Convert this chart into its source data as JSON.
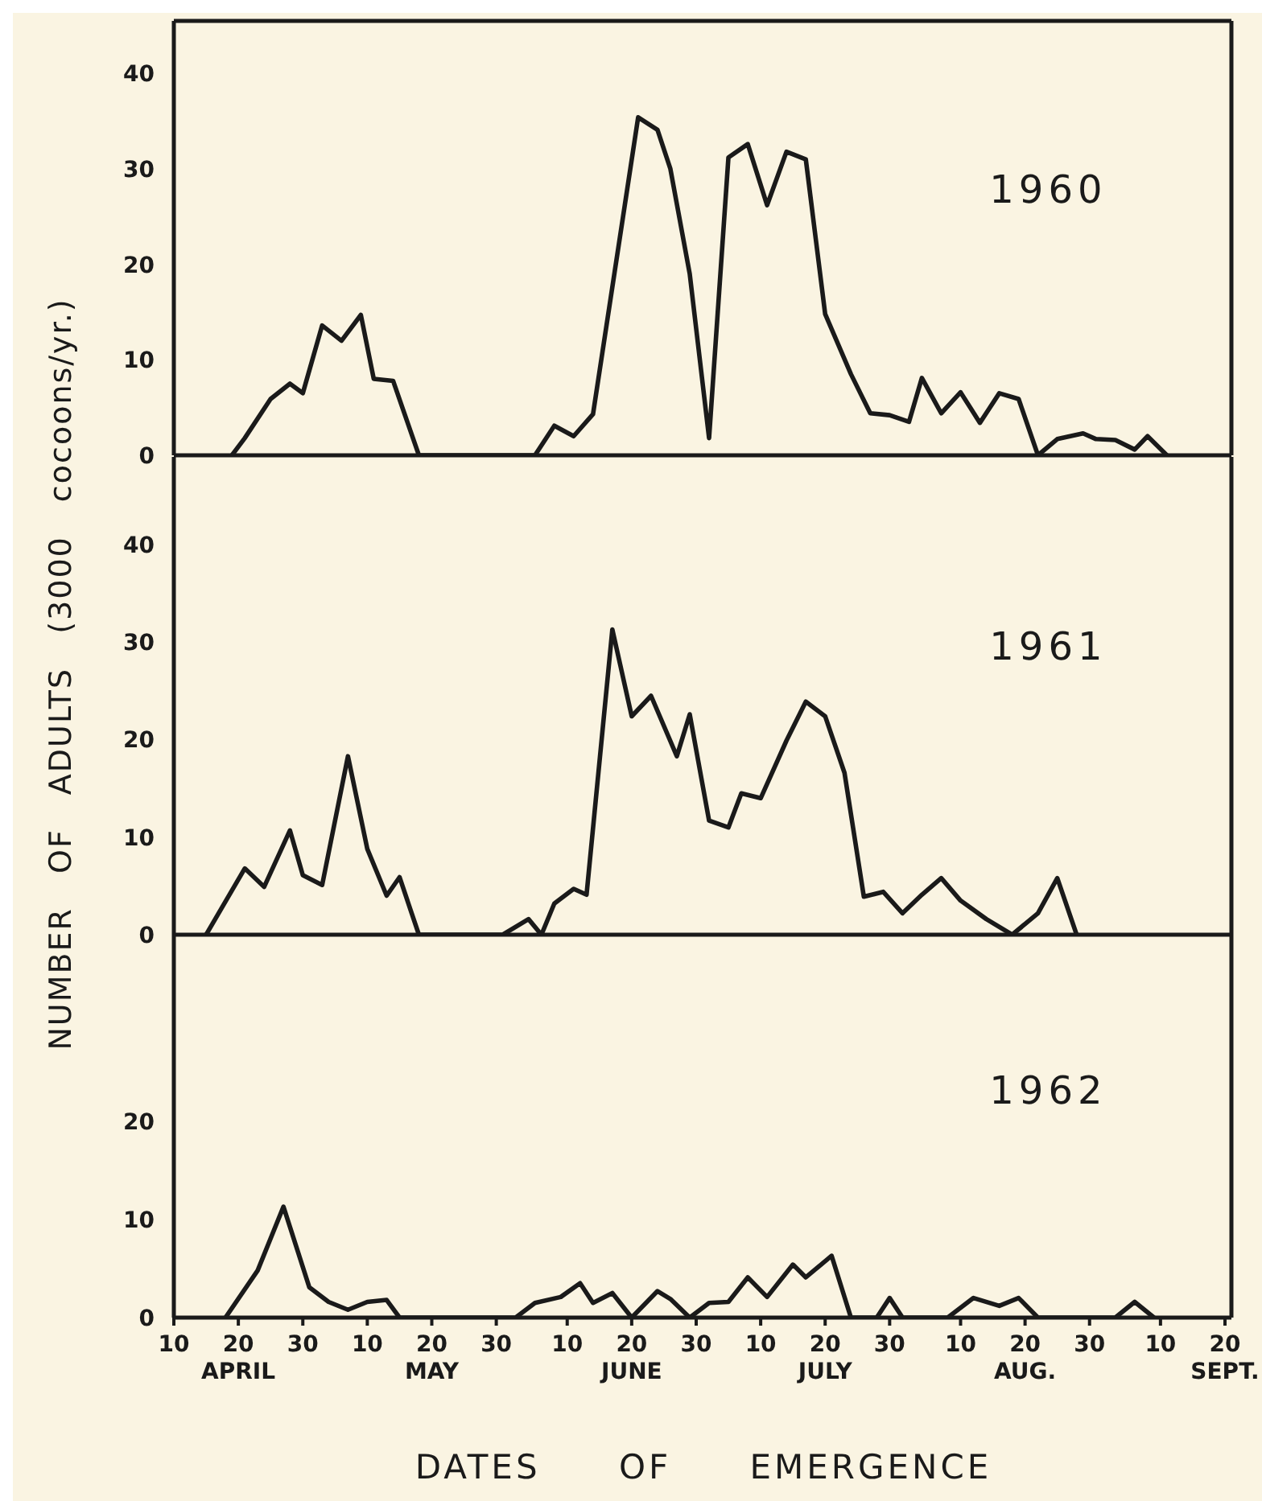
{
  "chart_data": [
    {
      "type": "line",
      "title": "1960",
      "tick_labels": "y",
      "xlim": [
        "--04-10",
        "--09-21"
      ],
      "ylim": [
        0,
        45.5
      ],
      "yticks": [
        0,
        10,
        20,
        30,
        40
      ],
      "series": [
        {
          "color": "#1a1a1a",
          "x": [
            "--04-19",
            "--04-21",
            "--04-25",
            "--04-28",
            "--04-30",
            "--05-03",
            "--05-06",
            "--05-09",
            "--05-11",
            "--05-14",
            "--05-18",
            "--06-05",
            "--06-08",
            "--06-11",
            "--06-14",
            "--06-21",
            "--06-24",
            "--06-26",
            "--06-29",
            "--07-02",
            "--07-05",
            "--07-08",
            "--07-11",
            "--07-14",
            "--07-17",
            "--07-20",
            "--07-24",
            "--07-27",
            "--07-30",
            "--08-02",
            "--08-04",
            "--08-07",
            "--08-10",
            "--08-13",
            "--08-16",
            "--08-19",
            "--08-22",
            "--08-25",
            "--08-29",
            "--08-31",
            "--09-03",
            "--09-06",
            "--09-08",
            "--09-11"
          ],
          "values": [
            0,
            1.8,
            5.9,
            7.5,
            6.5,
            13.6,
            12,
            14.7,
            8,
            7.8,
            0,
            0,
            3.1,
            2,
            4.3,
            35.4,
            34.1,
            30,
            19,
            1.8,
            31.2,
            32.6,
            26.2,
            31.8,
            31,
            14.8,
            8.5,
            4.4,
            4.2,
            3.5,
            8.1,
            4.4,
            6.6,
            3.4,
            6.5,
            5.9,
            0,
            1.7,
            2.3,
            1.7,
            1.6,
            0.6,
            2,
            0
          ]
        }
      ]
    },
    {
      "type": "line",
      "title": "1961",
      "ylabel": "NUMBER OF ADULTS (3000 cocoons/yr.)",
      "tick_labels": "y",
      "xlim": [
        "--04-10",
        "--09-21"
      ],
      "ylim": [
        0,
        49
      ],
      "yticks": [
        0,
        10,
        20,
        30,
        40
      ],
      "series": [
        {
          "color": "#1a1a1a",
          "x": [
            "--04-15",
            "--04-21",
            "--04-24",
            "--04-28",
            "--04-30",
            "--05-03",
            "--05-07",
            "--05-10",
            "--05-13",
            "--05-15",
            "--05-18",
            "--05-31",
            "--06-04",
            "--06-06",
            "--06-08",
            "--06-11",
            "--06-13",
            "--06-17",
            "--06-20",
            "--06-23",
            "--06-27",
            "--06-29",
            "--07-02",
            "--07-05",
            "--07-07",
            "--07-10",
            "--07-14",
            "--07-17",
            "--07-20",
            "--07-23",
            "--07-26",
            "--07-29",
            "--08-01",
            "--08-04",
            "--08-07",
            "--08-10",
            "--08-14",
            "--08-18",
            "--08-22",
            "--08-25",
            "--08-28"
          ],
          "values": [
            0,
            6.8,
            4.9,
            10.7,
            6.1,
            5.1,
            18.3,
            8.8,
            4,
            5.9,
            0,
            0,
            1.6,
            0,
            3.2,
            4.7,
            4.1,
            31.3,
            22.4,
            24.5,
            18.3,
            22.6,
            11.7,
            11,
            14.5,
            14,
            19.9,
            23.9,
            22.4,
            16.6,
            3.9,
            4.4,
            2.2,
            4.1,
            5.8,
            3.5,
            1.6,
            0,
            2.2,
            5.8,
            0
          ]
        }
      ]
    },
    {
      "type": "line",
      "title": "1962",
      "xlabel": "DATES OF EMERGENCE",
      "xlim": [
        "--04-10",
        "--09-21"
      ],
      "ylim": [
        0,
        39
      ],
      "yticks": [
        0,
        10,
        20
      ],
      "xticks": [
        {
          "value": "--04-10",
          "label": "10"
        },
        {
          "value": "--04-20",
          "label": "20\nAPRIL"
        },
        {
          "value": "--04-30",
          "label": "30"
        },
        {
          "value": "--05-10",
          "label": "10"
        },
        {
          "value": "--05-20",
          "label": "20\nMAY"
        },
        {
          "value": "--05-30",
          "label": "30"
        },
        {
          "value": "--06-10",
          "label": "10"
        },
        {
          "value": "--06-20",
          "label": "20\nJUNE"
        },
        {
          "value": "--06-30",
          "label": "30"
        },
        {
          "value": "--07-10",
          "label": "10"
        },
        {
          "value": "--07-20",
          "label": "20\nJULY"
        },
        {
          "value": "--07-30",
          "label": "30"
        },
        {
          "value": "--08-10",
          "label": "10"
        },
        {
          "value": "--08-20",
          "label": "20\nAUG."
        },
        {
          "value": "--08-30",
          "label": "30"
        },
        {
          "value": "--09-10",
          "label": "10"
        },
        {
          "value": "--09-20",
          "label": "20\nSEPT."
        }
      ],
      "series": [
        {
          "color": "#1a1a1a",
          "x": [
            "--04-18",
            "--04-23",
            "--04-27",
            "--05-01",
            "--05-04",
            "--05-07",
            "--05-10",
            "--05-13",
            "--05-15",
            "--06-02",
            "--06-05",
            "--06-09",
            "--06-12",
            "--06-14",
            "--06-17",
            "--06-20",
            "--06-24",
            "--06-26",
            "--06-29",
            "--07-02",
            "--07-05",
            "--07-08",
            "--07-11",
            "--07-15",
            "--07-17",
            "--07-21",
            "--07-24",
            "--07-28",
            "--07-30",
            "--08-01",
            "--08-08",
            "--08-12",
            "--08-16",
            "--08-19",
            "--08-22",
            "--09-03",
            "--09-06",
            "--09-09"
          ],
          "values": [
            0,
            4.8,
            11.3,
            3.1,
            1.6,
            0.8,
            1.6,
            1.8,
            0,
            0,
            1.5,
            2.1,
            3.5,
            1.5,
            2.5,
            0,
            2.7,
            1.9,
            0,
            1.5,
            1.6,
            4.1,
            2.1,
            5.4,
            4.1,
            6.3,
            0,
            0,
            2,
            0,
            0,
            2,
            1.2,
            2,
            0,
            0,
            1.6,
            0
          ]
        }
      ]
    }
  ]
}
